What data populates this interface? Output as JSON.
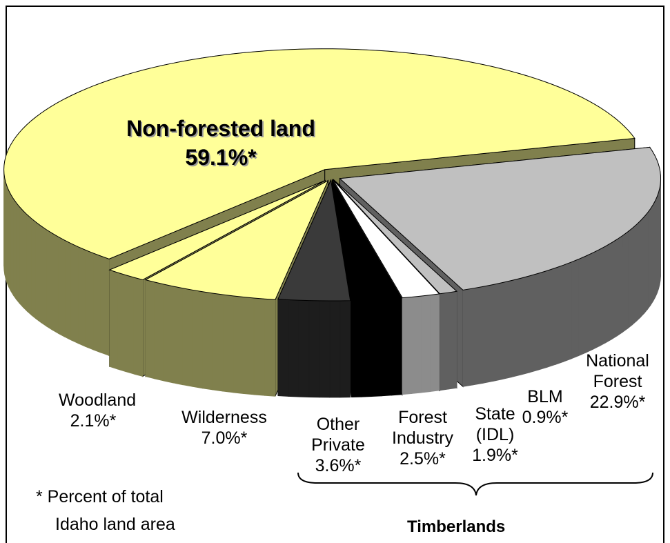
{
  "chart_data": {
    "type": "pie",
    "categories": [
      "Non-forested land",
      "Woodland",
      "Wilderness",
      "Other Private",
      "Forest Industry",
      "State (IDL)",
      "BLM",
      "National Forest"
    ],
    "values": [
      59.1,
      2.1,
      7.0,
      3.6,
      2.5,
      1.9,
      0.9,
      22.9
    ],
    "value_labels": [
      "59.1%*",
      "2.1%*",
      "7.0%*",
      "3.6%*",
      "2.5%*",
      "1.9%*",
      "0.9%*",
      "22.9%*"
    ],
    "colors": [
      "#ffff99",
      "#ffff99",
      "#ffff99",
      "#3a3a3a",
      "#000000",
      "#ffffff",
      "#c0c0c0",
      "#c0c0c0"
    ],
    "footnote": [
      "* Percent of total",
      "Idaho land area"
    ],
    "group_label": "Timberlands"
  }
}
